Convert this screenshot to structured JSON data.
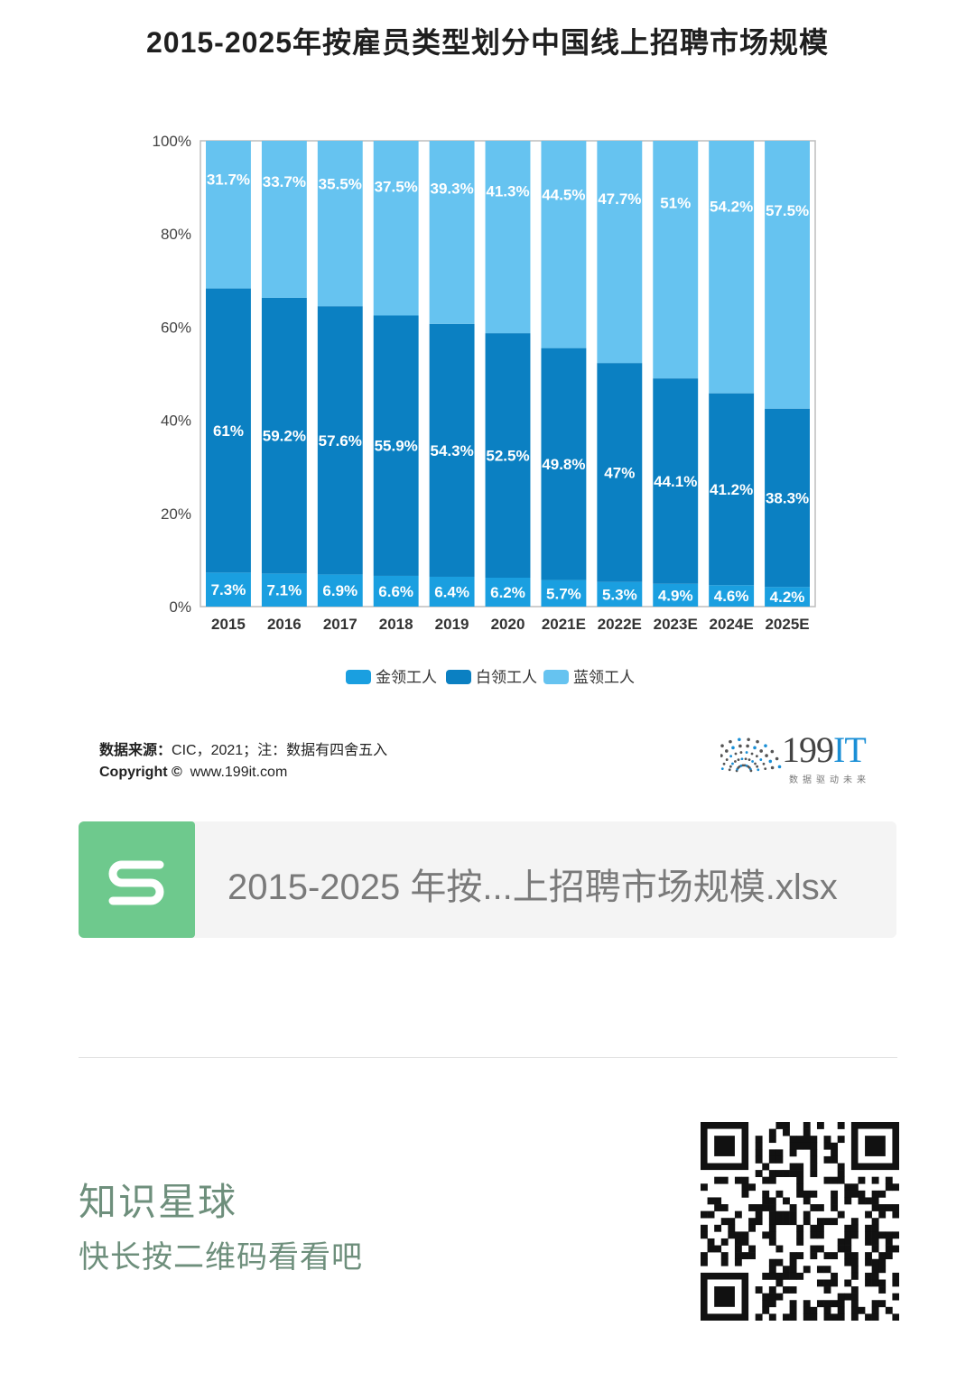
{
  "page": {
    "title": "2015-2025年按雇员类型划分中国线上招聘市场规模"
  },
  "chart_data": {
    "type": "bar",
    "stacked": true,
    "title": "2015-2025年按雇员类型划分中国线上招聘市场规模",
    "categories": [
      "2015",
      "2016",
      "2017",
      "2018",
      "2019",
      "2020",
      "2021E",
      "2022E",
      "2023E",
      "2024E",
      "2025E"
    ],
    "series": [
      {
        "name": "金领工人",
        "color": "#1a9fe0",
        "values": [
          7.3,
          7.1,
          6.9,
          6.6,
          6.4,
          6.2,
          5.7,
          5.3,
          4.9,
          4.6,
          4.2
        ],
        "labels": [
          "7.3%",
          "7.1%",
          "6.9%",
          "6.6%",
          "6.4%",
          "6.2%",
          "5.7%",
          "5.3%",
          "4.9%",
          "4.6%",
          "4.2%"
        ]
      },
      {
        "name": "白领工人",
        "color": "#0b80c2",
        "values": [
          61,
          59.2,
          57.6,
          55.9,
          54.3,
          52.5,
          49.8,
          47,
          44.1,
          41.2,
          38.3
        ],
        "labels": [
          "61%",
          "59.2%",
          "57.6%",
          "55.9%",
          "54.3%",
          "52.5%",
          "49.8%",
          "47%",
          "44.1%",
          "41.2%",
          "38.3%"
        ]
      },
      {
        "name": "蓝领工人",
        "color": "#66c3f0",
        "values": [
          31.7,
          33.7,
          35.5,
          37.5,
          39.3,
          41.3,
          44.5,
          47.7,
          51,
          54.2,
          57.5
        ],
        "labels": [
          "31.7%",
          "33.7%",
          "35.5%",
          "37.5%",
          "39.3%",
          "41.3%",
          "44.5%",
          "47.7%",
          "51%",
          "54.2%",
          "57.5%"
        ]
      }
    ],
    "y_ticks": [
      "0%",
      "20%",
      "40%",
      "60%",
      "80%",
      "100%"
    ],
    "ylim": [
      0,
      100
    ],
    "legend_position": "bottom",
    "grid": false
  },
  "source": {
    "label": "数据来源：",
    "text": "CIC，2021；注：数据有四舍五入",
    "copyright_label": "Copyright ©",
    "copyright_url": "www.199it.com"
  },
  "logo": {
    "number": "199",
    "suffix": "IT",
    "tagline": "数据驱动未来",
    "dot_color": "#1a8fd6"
  },
  "file": {
    "name": "2015-2025 年按...上招聘市场规模.xlsx",
    "icon": "spreadsheet-s-icon",
    "icon_color": "#6ec98d"
  },
  "planet": {
    "title": "知识星球",
    "subtitle": "快长按二维码看看吧"
  },
  "qr_icon": "qr-code-icon"
}
